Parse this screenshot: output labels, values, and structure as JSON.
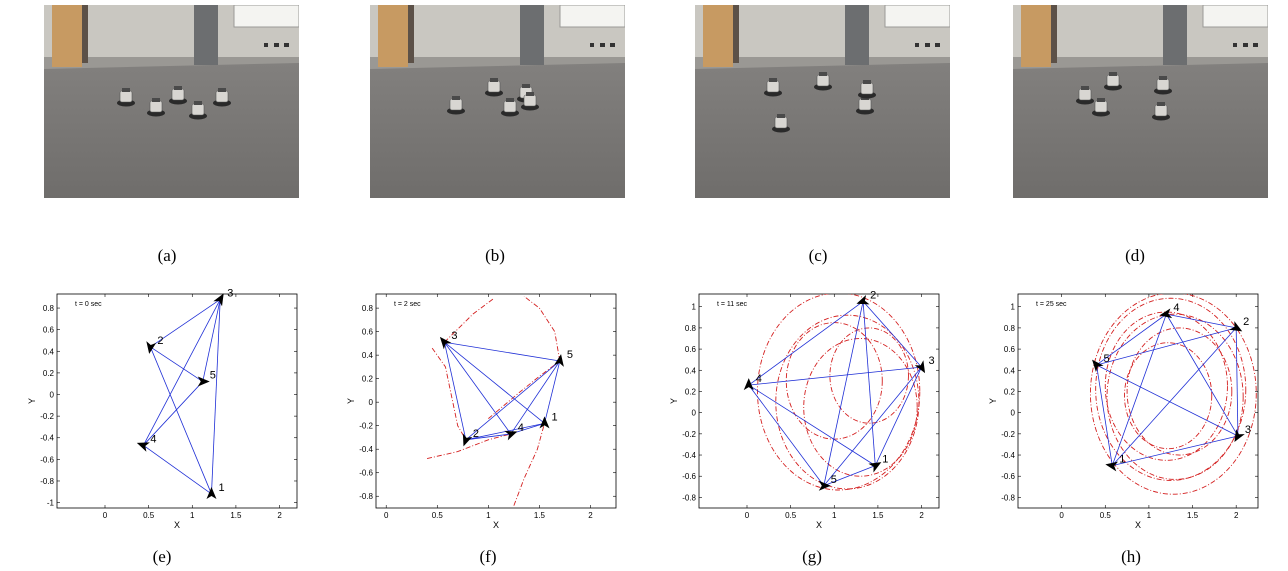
{
  "figure": {
    "photo_captions": [
      "(a)",
      "(b)",
      "(c)",
      "(d)"
    ],
    "plot_captions": [
      "(e)",
      "(f)",
      "(g)",
      "(h)"
    ],
    "photos": [
      {
        "robot_count": 5,
        "scene": "robots clustered on carpet floor"
      },
      {
        "robot_count": 5,
        "scene": "robots spreading out"
      },
      {
        "robot_count": 5,
        "scene": "robots in pentagon-like arrangement"
      },
      {
        "robot_count": 5,
        "scene": "robots in wider circular arrangement"
      }
    ],
    "colors": {
      "edge": "#1f2fd6",
      "trajectory": "#d42020",
      "marker": "#000000",
      "axis": "#000000"
    }
  },
  "chart_data": [
    {
      "type": "scatter",
      "time_label": "t = 0 sec",
      "xlabel": "X",
      "ylabel": "Y",
      "xlim": [
        -0.55,
        2.2
      ],
      "ylim": [
        -1.05,
        0.93
      ],
      "xticks": [
        0,
        0.5,
        1,
        1.5,
        2
      ],
      "xtick_labels": [
        "0",
        "0.5",
        "1",
        "1.5",
        "2"
      ],
      "yticks": [
        0.8,
        0.6,
        0.4,
        0.2,
        0,
        -0.2,
        -0.4,
        -0.6,
        -0.8,
        -1
      ],
      "ytick_labels": [
        "0.8",
        "0.6",
        "0.4",
        "0.2",
        "0",
        "-0.2",
        "-0.4",
        "-0.6",
        "-0.8",
        "-1"
      ],
      "nodes": [
        {
          "id": "1",
          "x": 1.22,
          "y": -0.92,
          "heading": 90
        },
        {
          "id": "2",
          "x": 0.52,
          "y": 0.44,
          "heading": 260
        },
        {
          "id": "3",
          "x": 1.32,
          "y": 0.88,
          "heading": 60
        },
        {
          "id": "4",
          "x": 0.44,
          "y": -0.47,
          "heading": 160
        },
        {
          "id": "5",
          "x": 1.12,
          "y": 0.12,
          "heading": 0
        }
      ],
      "edges": [
        [
          "1",
          "2"
        ],
        [
          "1",
          "3"
        ],
        [
          "1",
          "4"
        ],
        [
          "2",
          "3"
        ],
        [
          "2",
          "5"
        ],
        [
          "3",
          "4"
        ],
        [
          "3",
          "5"
        ],
        [
          "4",
          "5"
        ]
      ],
      "trajectories": []
    },
    {
      "type": "scatter",
      "time_label": "t = 2 sec",
      "xlabel": "X",
      "ylabel": "Y",
      "xlim": [
        -0.1,
        2.25
      ],
      "ylim": [
        -0.9,
        0.92
      ],
      "xticks": [
        0,
        0.5,
        1,
        1.5,
        2
      ],
      "xtick_labels": [
        "0",
        "0.5",
        "1",
        "1.5",
        "2"
      ],
      "yticks": [
        0.8,
        0.6,
        0.4,
        0.2,
        0,
        -0.2,
        -0.4,
        -0.6,
        -0.8
      ],
      "ytick_labels": [
        "0.8",
        "0.6",
        "0.4",
        "0.2",
        "0",
        "-0.2",
        "-0.4",
        "-0.6",
        "-0.8"
      ],
      "nodes": [
        {
          "id": "1",
          "x": 1.55,
          "y": -0.18,
          "heading": 90
        },
        {
          "id": "2",
          "x": 0.78,
          "y": -0.32,
          "heading": 250
        },
        {
          "id": "3",
          "x": 0.57,
          "y": 0.51,
          "heading": 130
        },
        {
          "id": "4",
          "x": 1.22,
          "y": -0.27,
          "heading": 20
        },
        {
          "id": "5",
          "x": 1.7,
          "y": 0.35,
          "heading": 80
        }
      ],
      "edges": [
        [
          "1",
          "2"
        ],
        [
          "1",
          "3"
        ],
        [
          "1",
          "4"
        ],
        [
          "1",
          "5"
        ],
        [
          "2",
          "3"
        ],
        [
          "2",
          "4"
        ],
        [
          "2",
          "5"
        ],
        [
          "3",
          "4"
        ],
        [
          "3",
          "5"
        ],
        [
          "4",
          "5"
        ]
      ],
      "trajectories": [
        [
          [
            0.45,
            0.46
          ],
          [
            0.58,
            0.3
          ],
          [
            0.64,
            0.05
          ],
          [
            0.7,
            -0.2
          ],
          [
            0.78,
            -0.32
          ]
        ],
        [
          [
            0.4,
            -0.48
          ],
          [
            0.7,
            -0.42
          ],
          [
            1.0,
            -0.32
          ],
          [
            1.22,
            -0.27
          ]
        ],
        [
          [
            1.25,
            -0.88
          ],
          [
            1.35,
            -0.65
          ],
          [
            1.48,
            -0.4
          ],
          [
            1.55,
            -0.18
          ]
        ],
        [
          [
            1.0,
            -0.14
          ],
          [
            1.3,
            0.08
          ],
          [
            1.5,
            0.22
          ],
          [
            1.7,
            0.35
          ]
        ],
        [
          [
            1.7,
            0.35
          ],
          [
            1.65,
            0.6
          ],
          [
            1.5,
            0.8
          ],
          [
            1.35,
            0.9
          ]
        ],
        [
          [
            0.57,
            0.51
          ],
          [
            0.85,
            0.75
          ],
          [
            1.05,
            0.88
          ]
        ]
      ]
    },
    {
      "type": "scatter",
      "time_label": "t = 11 sec",
      "xlabel": "X",
      "ylabel": "Y",
      "xlim": [
        -0.55,
        2.2
      ],
      "ylim": [
        -0.9,
        1.12
      ],
      "xticks": [
        0,
        0.5,
        1,
        1.5,
        2
      ],
      "xtick_labels": [
        "0",
        "0.5",
        "1",
        "1.5",
        "2"
      ],
      "yticks": [
        1,
        0.8,
        0.6,
        0.4,
        0.2,
        0,
        -0.2,
        -0.4,
        -0.6,
        -0.8
      ],
      "ytick_labels": [
        "1",
        "0.8",
        "0.6",
        "0.4",
        "0.2",
        "0",
        "-0.2",
        "-0.4",
        "-0.6",
        "-0.8"
      ],
      "nodes": [
        {
          "id": "1",
          "x": 1.47,
          "y": -0.5,
          "heading": 30
        },
        {
          "id": "2",
          "x": 1.33,
          "y": 1.05,
          "heading": 200
        },
        {
          "id": "3",
          "x": 2.0,
          "y": 0.43,
          "heading": -60
        },
        {
          "id": "4",
          "x": 0.02,
          "y": 0.26,
          "heading": 90
        },
        {
          "id": "5",
          "x": 0.88,
          "y": -0.69,
          "heading": 0
        }
      ],
      "edges": [
        [
          "1",
          "2"
        ],
        [
          "1",
          "3"
        ],
        [
          "1",
          "4"
        ],
        [
          "1",
          "5"
        ],
        [
          "2",
          "4"
        ],
        [
          "2",
          "5"
        ],
        [
          "3",
          "4"
        ],
        [
          "3",
          "5"
        ],
        [
          "2",
          "3"
        ],
        [
          "4",
          "5"
        ]
      ],
      "circles": [
        {
          "cx": 1.05,
          "cy": 0.2,
          "r": 0.93
        },
        {
          "cx": 1.15,
          "cy": 0.1,
          "r": 0.82
        },
        {
          "cx": 1.3,
          "cy": 0.05,
          "r": 0.65
        },
        {
          "cx": 1.0,
          "cy": 0.3,
          "r": 0.55
        },
        {
          "cx": 1.4,
          "cy": 0.35,
          "r": 0.45
        }
      ],
      "trajectories": []
    },
    {
      "type": "scatter",
      "time_label": "t = 25 sec",
      "xlabel": "X",
      "ylabel": "Y",
      "xlim": [
        -0.5,
        2.25
      ],
      "ylim": [
        -0.9,
        1.12
      ],
      "xticks": [
        0,
        0.5,
        1,
        1.5,
        2
      ],
      "xtick_labels": [
        "0",
        "0.5",
        "1",
        "1.5",
        "2"
      ],
      "yticks": [
        1,
        0.8,
        0.6,
        0.4,
        0.2,
        0,
        -0.2,
        -0.4,
        -0.6,
        -0.8
      ],
      "ytick_labels": [
        "1",
        "0.8",
        "0.6",
        "0.4",
        "0.2",
        "0",
        "-0.2",
        "-0.4",
        "-0.6",
        "-0.8"
      ],
      "nodes": [
        {
          "id": "1",
          "x": 0.58,
          "y": -0.5,
          "heading": 170
        },
        {
          "id": "2",
          "x": 2.0,
          "y": 0.8,
          "heading": -30
        },
        {
          "id": "3",
          "x": 2.02,
          "y": -0.22,
          "heading": 240
        },
        {
          "id": "4",
          "x": 1.2,
          "y": 0.93,
          "heading": 190
        },
        {
          "id": "5",
          "x": 0.4,
          "y": 0.45,
          "heading": 130
        }
      ],
      "edges": [
        [
          "1",
          "2"
        ],
        [
          "1",
          "3"
        ],
        [
          "1",
          "4"
        ],
        [
          "1",
          "5"
        ],
        [
          "2",
          "3"
        ],
        [
          "2",
          "4"
        ],
        [
          "2",
          "5"
        ],
        [
          "3",
          "4"
        ],
        [
          "3",
          "5"
        ],
        [
          "4",
          "5"
        ]
      ],
      "circles": [
        {
          "cx": 1.28,
          "cy": 0.18,
          "r": 0.95
        },
        {
          "cx": 1.25,
          "cy": 0.22,
          "r": 0.86
        },
        {
          "cx": 1.3,
          "cy": 0.15,
          "r": 0.78
        },
        {
          "cx": 1.2,
          "cy": 0.25,
          "r": 0.7
        },
        {
          "cx": 1.35,
          "cy": 0.2,
          "r": 0.6
        },
        {
          "cx": 1.22,
          "cy": 0.16,
          "r": 0.5
        }
      ],
      "trajectories": []
    }
  ]
}
